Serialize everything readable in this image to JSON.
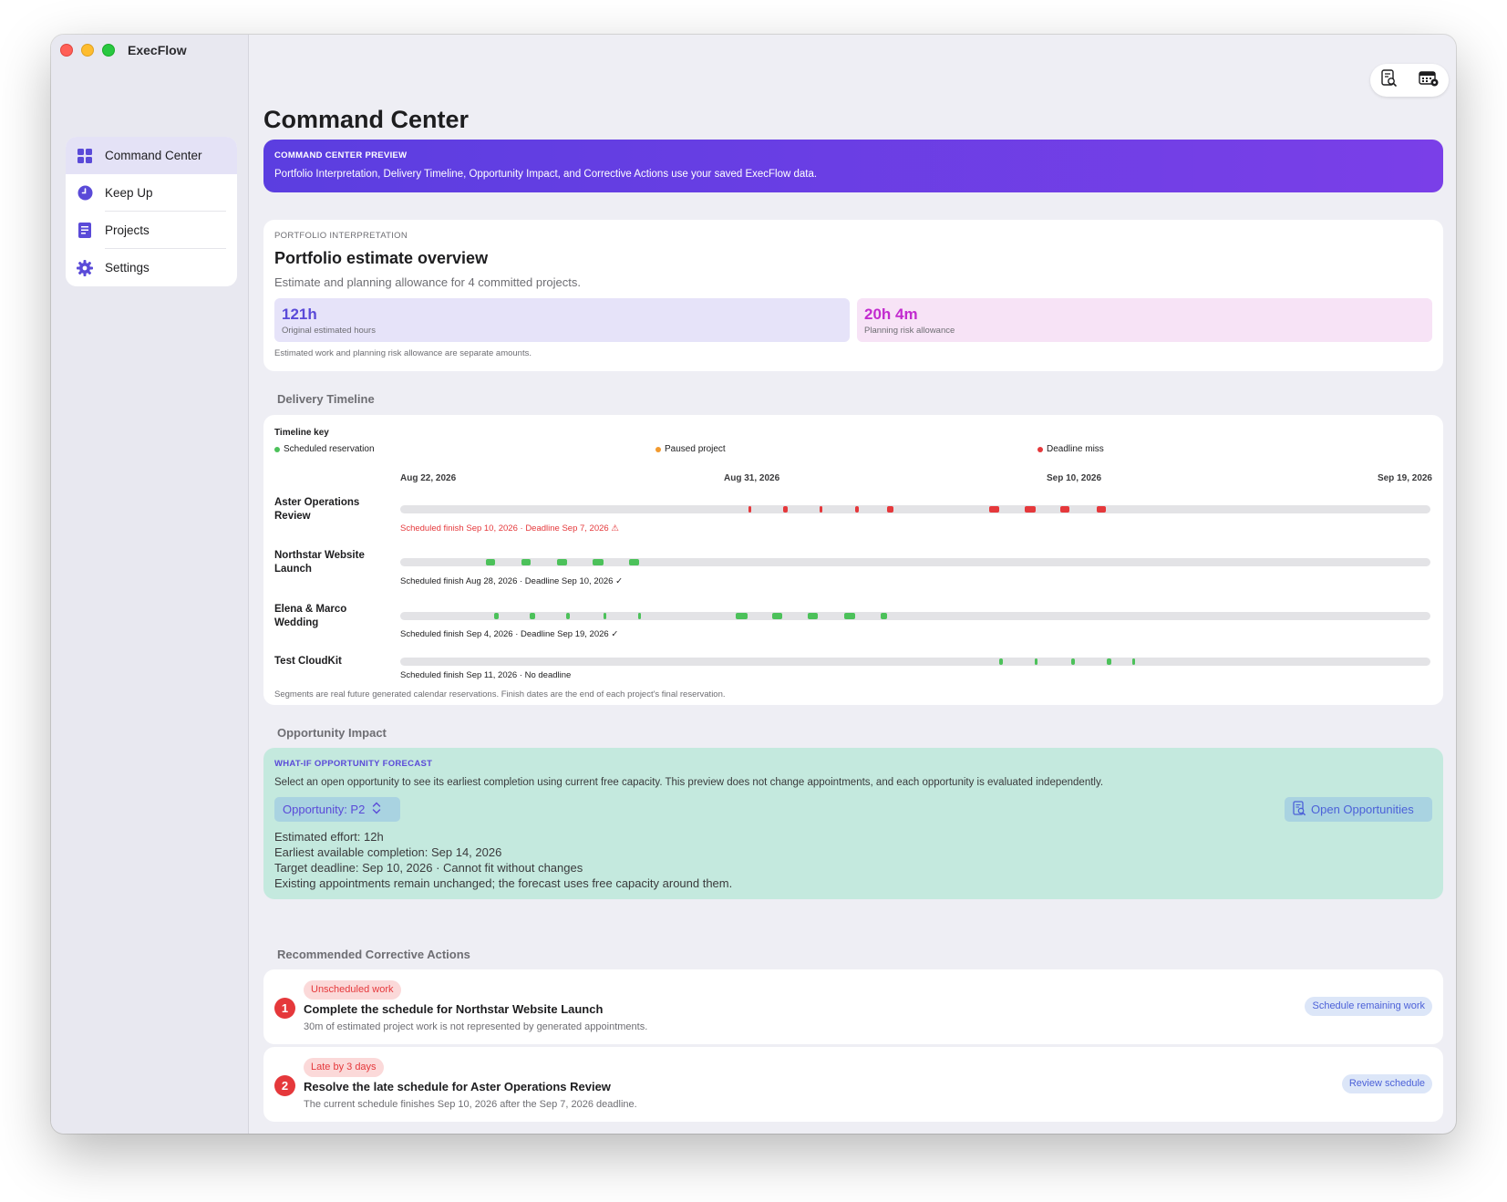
{
  "app": {
    "title": "ExecFlow"
  },
  "sidebar": {
    "items": [
      {
        "label": "Command Center",
        "icon": "grid-icon",
        "active": true
      },
      {
        "label": "Keep Up",
        "icon": "clock-icon",
        "active": false
      },
      {
        "label": "Projects",
        "icon": "document-icon",
        "active": false
      },
      {
        "label": "Settings",
        "icon": "gear-icon",
        "active": false
      }
    ]
  },
  "toolbar": {
    "icons": [
      "document-search-icon",
      "calendar-badge-icon"
    ]
  },
  "page": {
    "title": "Command Center"
  },
  "banner": {
    "kicker": "COMMAND CENTER PREVIEW",
    "message": "Portfolio Interpretation, Delivery Timeline, Opportunity Impact, and Corrective Actions use your saved ExecFlow data."
  },
  "portfolio": {
    "kicker": "PORTFOLIO INTERPRETATION",
    "title": "Portfolio estimate overview",
    "subtitle": "Estimate and planning allowance for 4 committed projects.",
    "stats": [
      {
        "value": "121h",
        "label": "Original estimated hours",
        "color": "#5a4ad8",
        "bg": "#e6e3f9"
      },
      {
        "value": "20h 4m",
        "label": "Planning risk allowance",
        "color": "#c22bcf",
        "bg": "#f7e3f6"
      }
    ],
    "footnote": "Estimated work and planning risk allowance are separate amounts."
  },
  "timeline": {
    "section_label": "Delivery Timeline",
    "key_title": "Timeline key",
    "key": [
      {
        "label": "Scheduled reservation",
        "color": "#4cc15a"
      },
      {
        "label": "Paused project",
        "color": "#f29a2e"
      },
      {
        "label": "Deadline miss",
        "color": "#e5383b"
      }
    ],
    "ticks": [
      "Aug 22, 2026",
      "Aug 31, 2026",
      "Sep 10, 2026",
      "Sep 19, 2026"
    ],
    "rows": [
      {
        "name": "Aster Operations Review",
        "note": "Scheduled finish Sep 10, 2026 · Deadline Sep 7, 2026 ⚠",
        "late": true,
        "segments": [
          [
            0.338,
            0.341
          ],
          [
            0.372,
            0.376
          ],
          [
            0.407,
            0.41
          ],
          [
            0.442,
            0.445
          ],
          [
            0.473,
            0.479
          ],
          [
            0.572,
            0.581
          ],
          [
            0.606,
            0.617
          ],
          [
            0.641,
            0.65
          ],
          [
            0.676,
            0.685
          ]
        ]
      },
      {
        "name": "Northstar Website Launch",
        "note": "Scheduled finish Aug 28, 2026 · Deadline Sep 10, 2026 ✓",
        "late": false,
        "segments": [
          [
            0.083,
            0.092
          ],
          [
            0.118,
            0.127
          ],
          [
            0.152,
            0.162
          ],
          [
            0.187,
            0.197
          ],
          [
            0.222,
            0.232
          ]
        ]
      },
      {
        "name": "Elena & Marco Wedding",
        "note": "Scheduled finish Sep 4, 2026 · Deadline Sep 19, 2026 ✓",
        "late": false,
        "segments": [
          [
            0.091,
            0.096
          ],
          [
            0.126,
            0.131
          ],
          [
            0.161,
            0.165
          ],
          [
            0.197,
            0.2
          ],
          [
            0.231,
            0.234
          ],
          [
            0.326,
            0.337
          ],
          [
            0.361,
            0.371
          ],
          [
            0.396,
            0.405
          ],
          [
            0.431,
            0.442
          ],
          [
            0.466,
            0.473
          ]
        ]
      },
      {
        "name": "Test CloudKit",
        "note": "Scheduled finish Sep 11, 2026 · No deadline",
        "late": false,
        "segments": [
          [
            0.581,
            0.585
          ],
          [
            0.616,
            0.619
          ],
          [
            0.651,
            0.655
          ],
          [
            0.686,
            0.69
          ],
          [
            0.711,
            0.713
          ]
        ]
      }
    ],
    "footnote": "Segments are real future generated calendar reservations. Finish dates are the end of each project's final reservation."
  },
  "opportunity": {
    "section_label": "Opportunity Impact",
    "kicker": "WHAT-IF OPPORTUNITY FORECAST",
    "description": "Select an open opportunity to see its earliest completion using current free capacity. This preview does not change appointments, and each opportunity is evaluated independently.",
    "select_label": "Opportunity: P2",
    "open_button": "Open Opportunities",
    "lines": [
      "Estimated effort: 12h",
      "Earliest available completion: Sep 14, 2026",
      "Target deadline: Sep 10, 2026 · Cannot fit without changes",
      "Existing appointments remain unchanged; the forecast uses free capacity around them."
    ]
  },
  "actions": {
    "section_label": "Recommended Corrective Actions",
    "items": [
      {
        "number": "1",
        "tag": "Unscheduled work",
        "title": "Complete the schedule for Northstar Website Launch",
        "description": "30m of estimated project work is not represented by generated appointments.",
        "button": "Schedule remaining work"
      },
      {
        "number": "2",
        "tag": "Late by 3 days",
        "title": "Resolve the late schedule for Aster Operations Review",
        "description": "The current schedule finishes Sep 10, 2026 after the Sep 7, 2026 deadline.",
        "button": "Review schedule"
      }
    ]
  }
}
